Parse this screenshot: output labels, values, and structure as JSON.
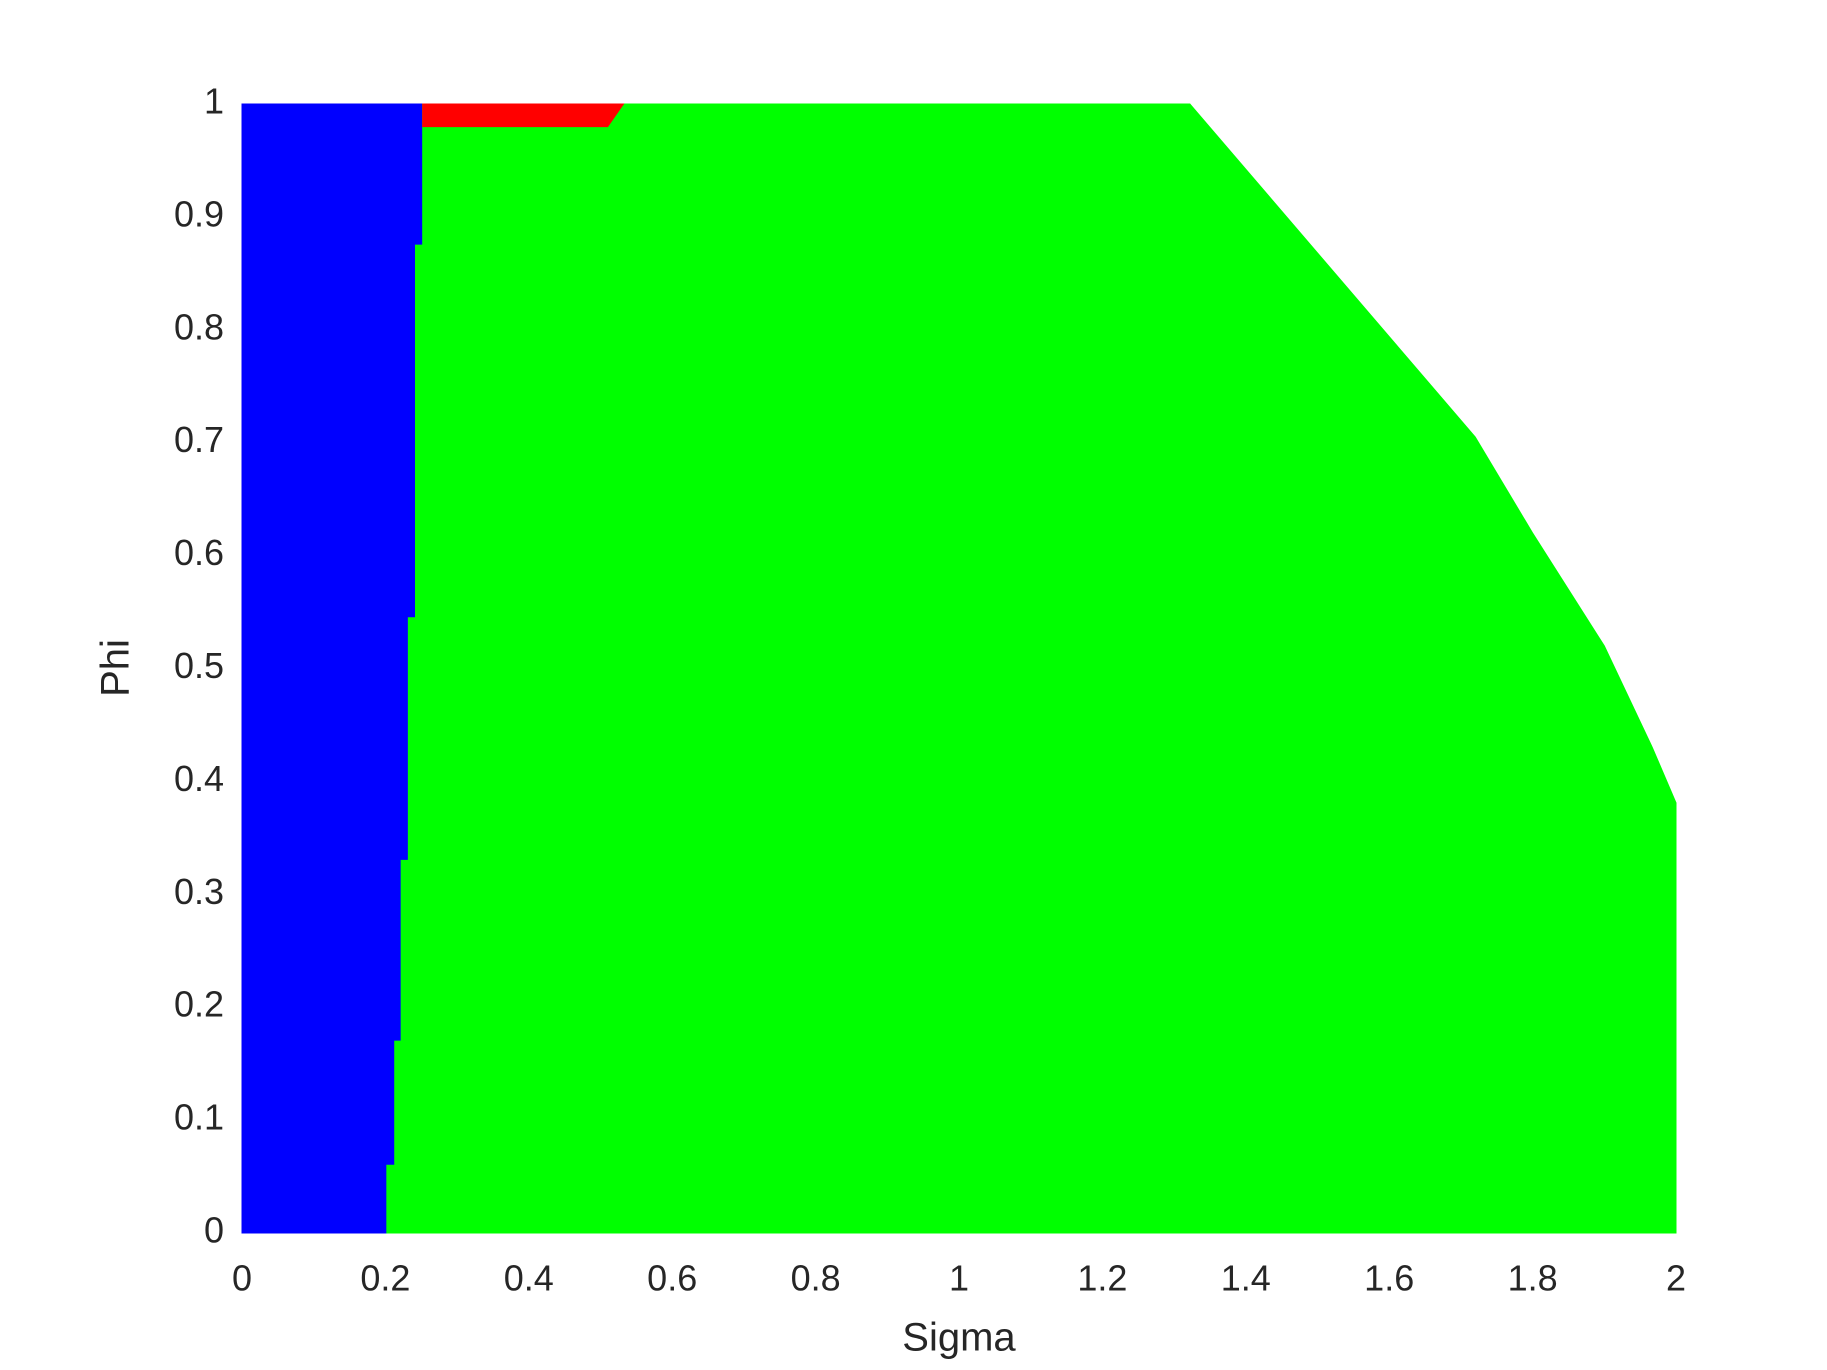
{
  "chart_data": {
    "type": "region",
    "xlabel": "Sigma",
    "ylabel": "Phi",
    "xlim": [
      0,
      2
    ],
    "ylim": [
      0,
      1
    ],
    "xticks": [
      0,
      0.2,
      0.4,
      0.6,
      0.8,
      1,
      1.2,
      1.4,
      1.6,
      1.8,
      2
    ],
    "yticks": [
      0,
      0.1,
      0.2,
      0.3,
      0.4,
      0.5,
      0.6,
      0.7,
      0.8,
      0.9,
      1
    ],
    "series": [
      {
        "color": "#0000ff",
        "x": [
          0,
          0.202,
          0.202,
          0.213,
          0.213,
          0.222,
          0.222,
          0.232,
          0.232,
          0.242,
          0.242,
          0.252,
          0.252,
          0
        ],
        "y": [
          0,
          0,
          0.06,
          0.06,
          0.17,
          0.17,
          0.33,
          0.33,
          0.545,
          0.545,
          0.875,
          0.875,
          1,
          1
        ]
      },
      {
        "color": "#00ff00",
        "x": [
          0.202,
          2,
          2,
          1.967,
          1.9,
          1.8,
          1.72,
          1.322,
          0.252,
          0.252,
          0.242,
          0.242,
          0.232,
          0.232,
          0.222,
          0.222,
          0.213,
          0.213,
          0.202
        ],
        "y": [
          0,
          0,
          0.381,
          0.43,
          0.52,
          0.62,
          0.705,
          1,
          1,
          0.875,
          0.875,
          0.545,
          0.545,
          0.33,
          0.33,
          0.17,
          0.17,
          0.06,
          0.06
        ]
      },
      {
        "color": "#ff0000",
        "x": [
          0.252,
          0.51,
          0.532,
          0.252
        ],
        "y": [
          0.98,
          0.98,
          1,
          1
        ]
      }
    ]
  }
}
